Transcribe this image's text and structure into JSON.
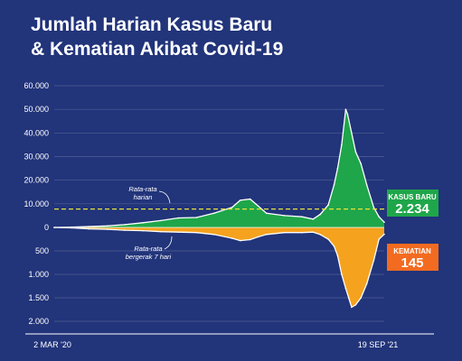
{
  "title_line1": "Jumlah Harian Kasus Baru",
  "title_line2": "& Kematian Akibat Covid-19",
  "colors": {
    "background": "#22347a",
    "cases": "#1fa64a",
    "deaths": "#f5a21e",
    "average_line": "#e8e23a",
    "cases_badge": "#1fa64a",
    "deaths_badge": "#f26b21"
  },
  "chart_data": {
    "type": "area",
    "x_labels": {
      "start": "2 MAR '20",
      "end": "19 SEP '21"
    },
    "x_range": [
      "2020-03-02",
      "2021-09-19"
    ],
    "cases_axis": {
      "ticks": [
        "60.000",
        "50.000",
        "40.000",
        "30.000",
        "20.000",
        "10.000",
        "0"
      ],
      "tick_values": [
        60000,
        50000,
        40000,
        30000,
        20000,
        10000,
        0
      ],
      "range": [
        0,
        60000
      ]
    },
    "deaths_axis": {
      "ticks": [
        "500",
        "1.000",
        "1.500",
        "2.000"
      ],
      "tick_values": [
        500,
        1000,
        1500,
        2000
      ],
      "range": [
        0,
        2000
      ]
    },
    "daily_average": 7800,
    "series": [
      {
        "name": "Kasus Baru",
        "x": [
          "2020-03-02",
          "2020-04-01",
          "2020-05-01",
          "2020-06-01",
          "2020-07-01",
          "2020-08-01",
          "2020-09-01",
          "2020-10-01",
          "2020-11-01",
          "2020-12-01",
          "2021-01-01",
          "2021-01-15",
          "2021-02-01",
          "2021-02-15",
          "2021-03-01",
          "2021-04-01",
          "2021-05-01",
          "2021-05-20",
          "2021-06-01",
          "2021-06-15",
          "2021-06-25",
          "2021-07-01",
          "2021-07-08",
          "2021-07-15",
          "2021-07-18",
          "2021-07-25",
          "2021-08-01",
          "2021-08-10",
          "2021-08-20",
          "2021-09-01",
          "2021-09-10",
          "2021-09-19"
        ],
        "values": [
          0,
          150,
          400,
          650,
          1200,
          2000,
          2900,
          4000,
          4200,
          6000,
          8500,
          11500,
          12000,
          9000,
          6000,
          5000,
          4500,
          3500,
          5500,
          9500,
          18000,
          25000,
          35000,
          50000,
          48000,
          40000,
          32000,
          27000,
          18000,
          8500,
          4500,
          2234
        ]
      },
      {
        "name": "Kematian",
        "x": [
          "2020-03-02",
          "2020-04-01",
          "2020-05-01",
          "2020-06-01",
          "2020-07-01",
          "2020-08-01",
          "2020-09-01",
          "2020-10-01",
          "2020-11-01",
          "2020-12-01",
          "2021-01-01",
          "2021-01-15",
          "2021-02-01",
          "2021-02-15",
          "2021-03-01",
          "2021-04-01",
          "2021-05-01",
          "2021-05-20",
          "2021-06-01",
          "2021-06-15",
          "2021-06-25",
          "2021-07-01",
          "2021-07-08",
          "2021-07-15",
          "2021-07-20",
          "2021-07-25",
          "2021-08-01",
          "2021-08-10",
          "2021-08-20",
          "2021-09-01",
          "2021-09-10",
          "2021-09-19"
        ],
        "values": [
          0,
          10,
          30,
          40,
          60,
          70,
          90,
          100,
          110,
          150,
          230,
          280,
          260,
          200,
          150,
          110,
          110,
          100,
          150,
          250,
          400,
          600,
          1000,
          1300,
          1500,
          1700,
          1650,
          1500,
          1200,
          700,
          250,
          145
        ]
      }
    ],
    "annotations": {
      "average": [
        "Rata-rata",
        "harian"
      ],
      "moving_average": [
        "Rata-rata",
        "bergerak 7 hari"
      ]
    },
    "badges": {
      "cases_label": "KASUS BARU",
      "cases_value": "2.234",
      "deaths_label": "KEMATIAN",
      "deaths_value": "145"
    }
  }
}
